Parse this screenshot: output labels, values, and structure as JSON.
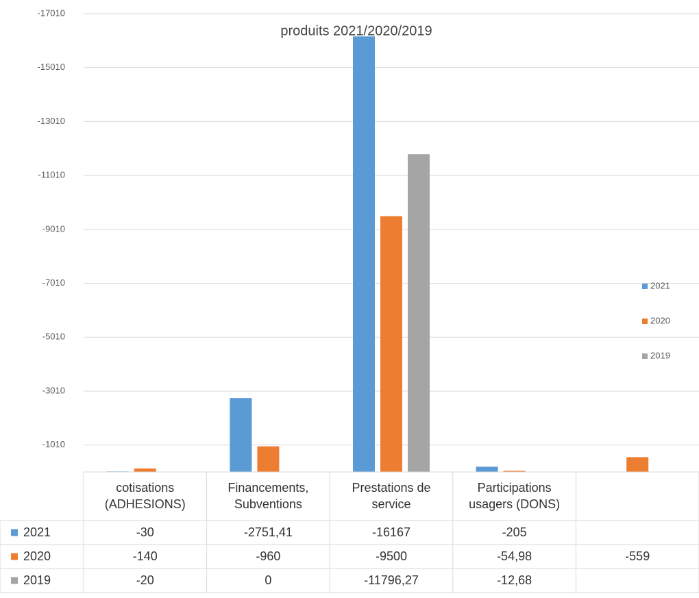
{
  "chart_data": {
    "type": "bar",
    "title": "produits 2021/2020/2019",
    "categories": [
      "cotisations (ADHESIONS)",
      "Financements, Subventions",
      "Prestations de service",
      "Participations usagers (DONS)",
      null
    ],
    "series": [
      {
        "name": "2021",
        "color": "#5b9bd5",
        "values": [
          -30,
          -2751.41,
          -16167,
          -205,
          null
        ],
        "value_labels": [
          "-30",
          "-2751,41",
          "-16167",
          "-205",
          null
        ]
      },
      {
        "name": "2020",
        "color": "#ed7d31",
        "values": [
          -140,
          -960,
          -9500,
          -54.98,
          -559
        ],
        "value_labels": [
          "-140",
          "-960",
          "-9500",
          "-54,98",
          "-559"
        ]
      },
      {
        "name": "2019",
        "color": "#a5a5a5",
        "values": [
          -20,
          0,
          -11796.27,
          -12.68,
          null
        ],
        "value_labels": [
          "-20",
          "0",
          "-11796,27",
          "-12,68",
          null
        ]
      }
    ],
    "ylim": [
      -10,
      -17010
    ],
    "yticks": [
      -17010,
      -15010,
      -13010,
      -11010,
      -9010,
      -7010,
      -5010,
      -3010,
      -1010
    ],
    "grid": true,
    "legend": "right",
    "data_table": true
  }
}
